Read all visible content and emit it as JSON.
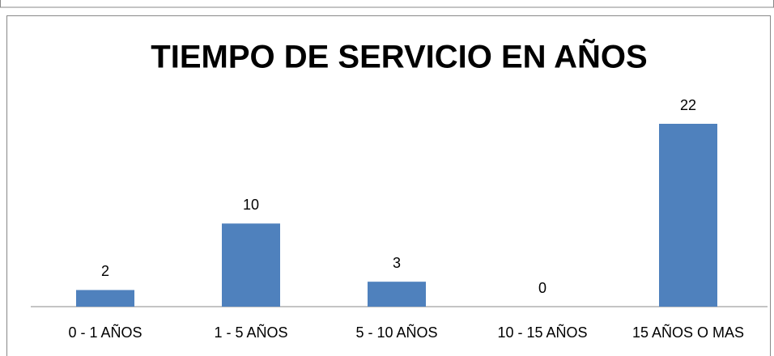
{
  "chart_data": {
    "type": "bar",
    "title": "TIEMPO DE SERVICIO EN AÑOS",
    "categories": [
      "0 - 1 AÑOS",
      "1 - 5 AÑOS",
      "5 - 10 AÑOS",
      "10 - 15 AÑOS",
      "15 AÑOS O MAS"
    ],
    "values": [
      2,
      10,
      3,
      0,
      22
    ],
    "color": "#4f81bd"
  }
}
